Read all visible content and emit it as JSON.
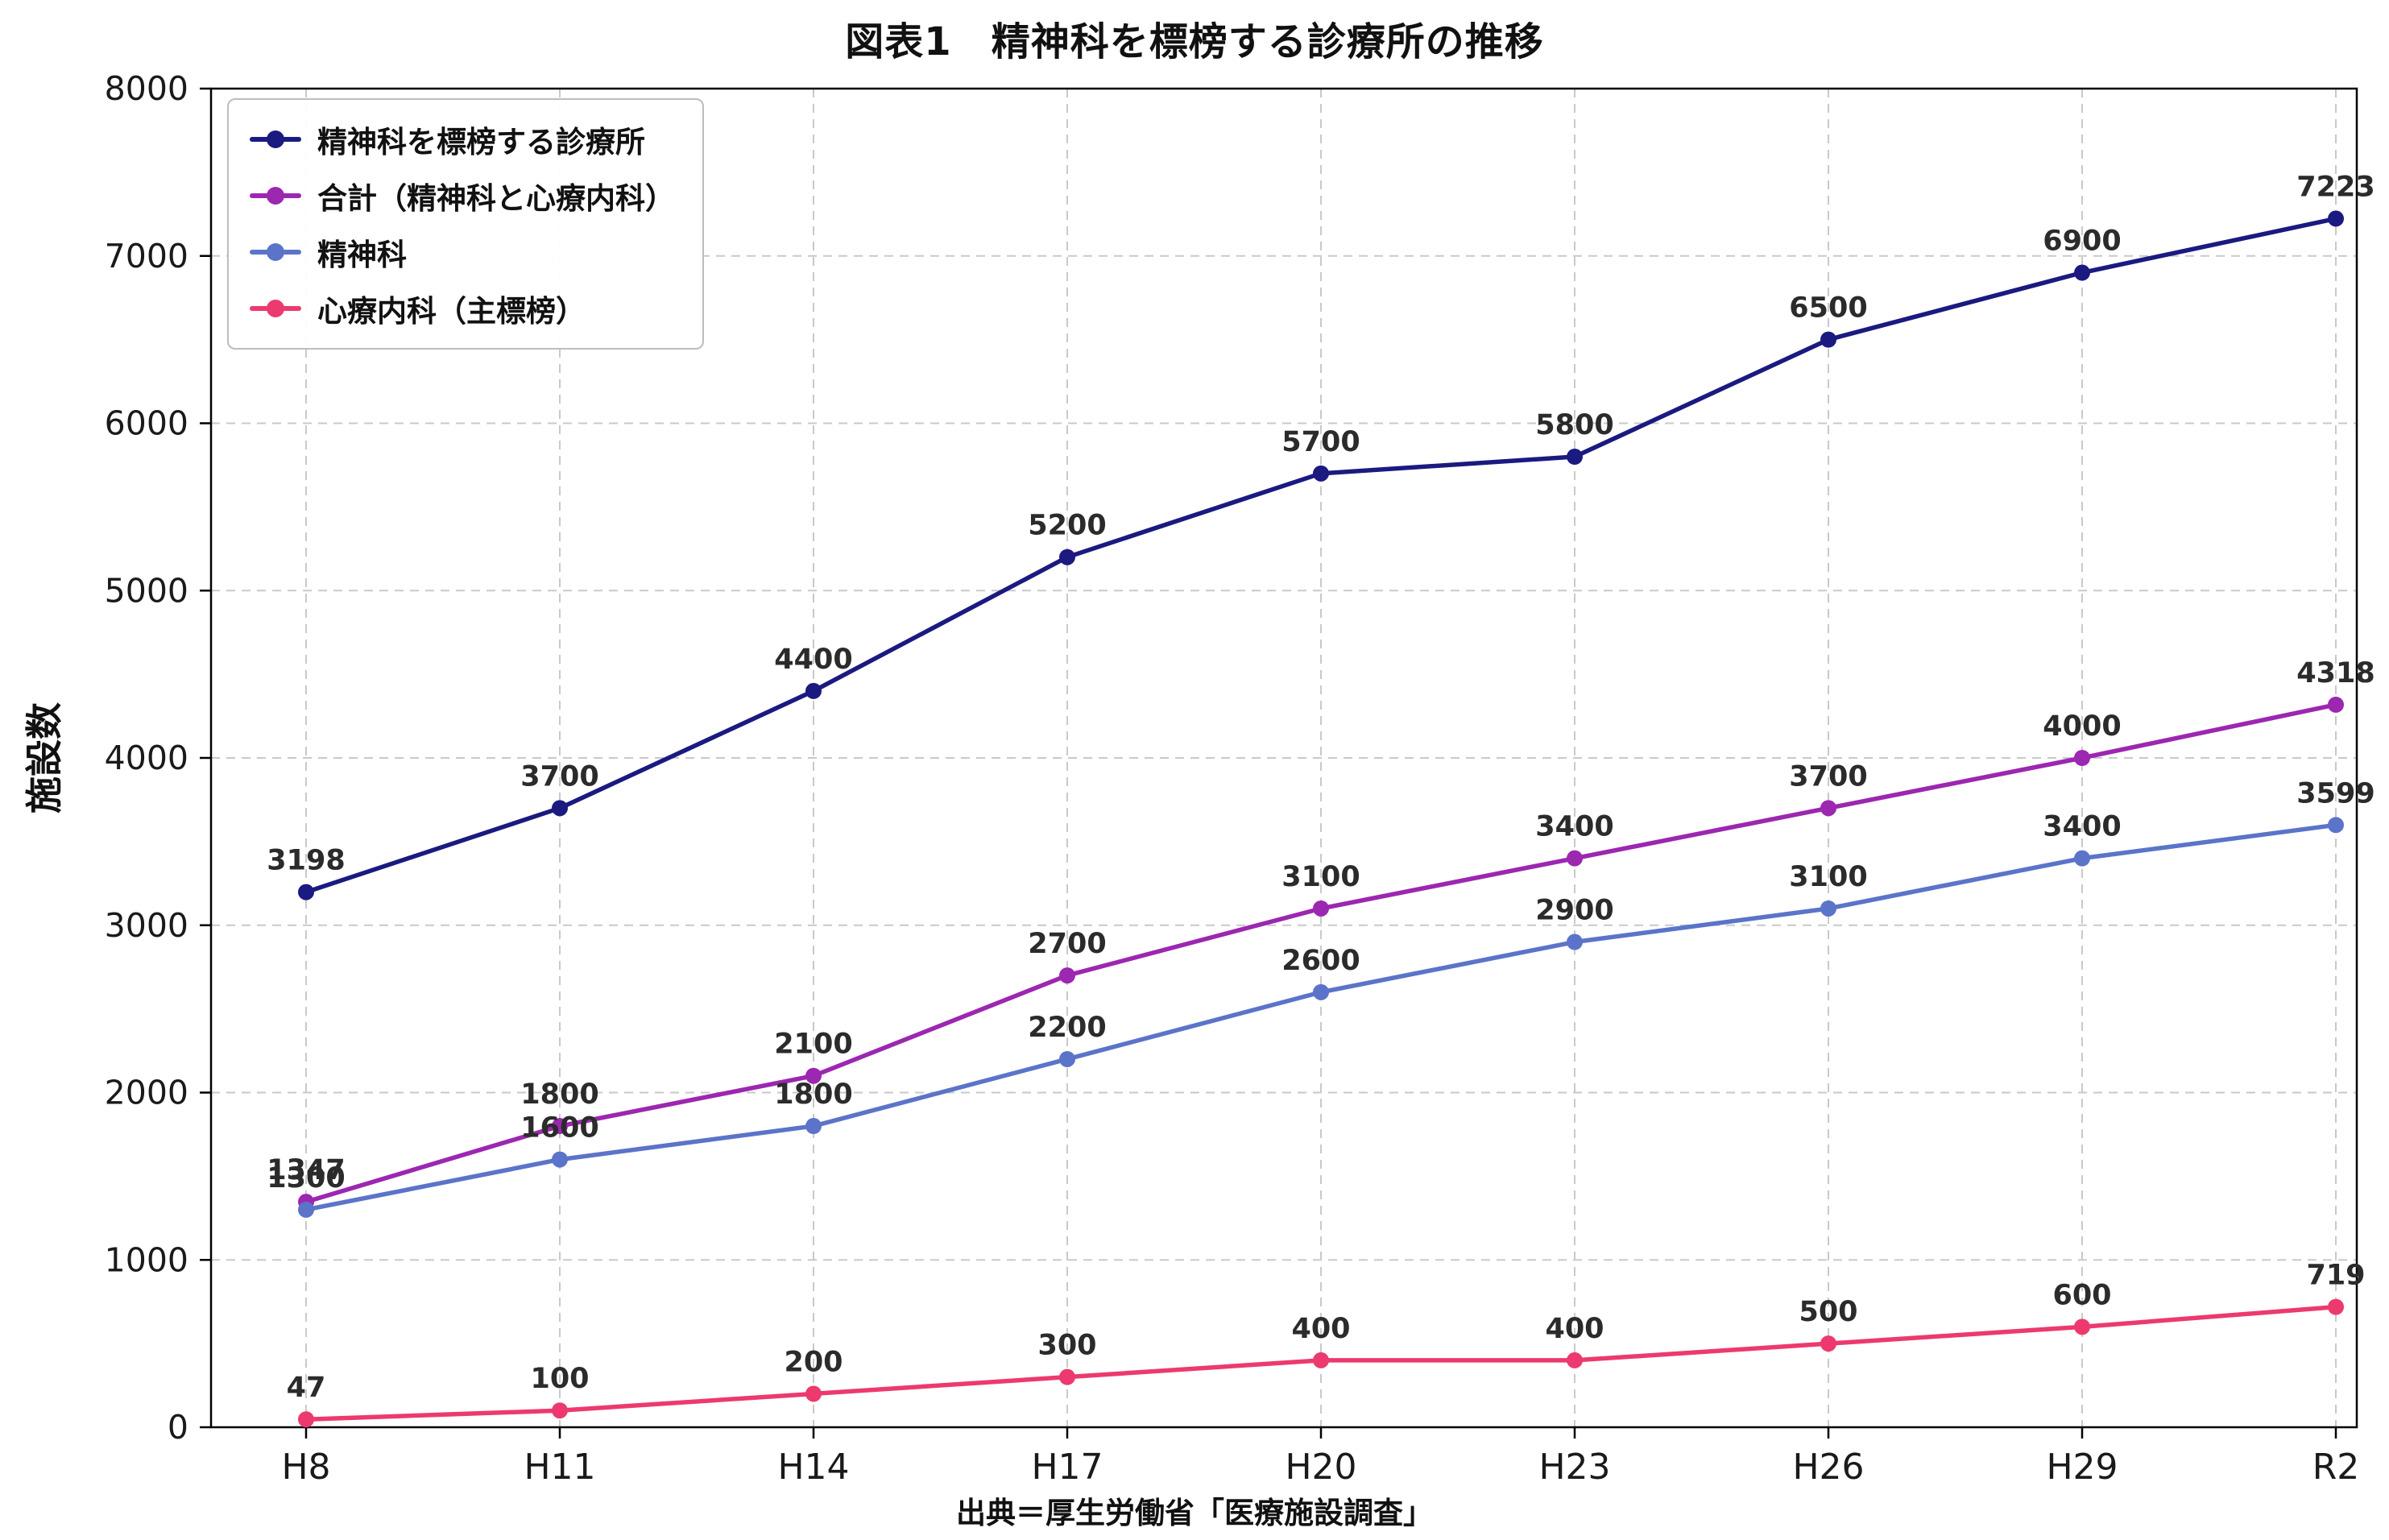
{
  "title": "図表1　精神科を標榜する診療所の推移",
  "source_caption": "出典＝厚生労働省「医療施設調査」",
  "chart_data": {
    "type": "line",
    "title": "図表1　精神科を標榜する診療所の推移",
    "xlabel": "",
    "ylabel": "施設数",
    "categories": [
      "H8",
      "H11",
      "H14",
      "H17",
      "H20",
      "H23",
      "H26",
      "H29",
      "R2"
    ],
    "ylim": [
      0,
      8000
    ],
    "y_ticks": [
      0,
      1000,
      2000,
      3000,
      4000,
      5000,
      6000,
      7000,
      8000
    ],
    "grid": true,
    "legend_position": "upper left",
    "series": [
      {
        "id": "psychiatry-signboard-clinics",
        "name": "精神科を標榜する診療所",
        "color": "#1a1a80",
        "values": [
          3198,
          3700,
          4400,
          5200,
          5700,
          5800,
          6500,
          6900,
          7223
        ]
      },
      {
        "id": "total-psychiatry-psychosomatic",
        "name": "合計（精神科と心療内科）",
        "color": "#9c27b0",
        "values": [
          1347,
          1800,
          2100,
          2700,
          3100,
          3400,
          3700,
          4000,
          4318
        ]
      },
      {
        "id": "psychiatry",
        "name": "精神科",
        "color": "#5b74c9",
        "values": [
          1300,
          1600,
          1800,
          2200,
          2600,
          2900,
          3100,
          3400,
          3599
        ]
      },
      {
        "id": "psychosomatic-main",
        "name": "心療内科（主標榜）",
        "color": "#ec3a6e",
        "values": [
          47,
          100,
          200,
          300,
          400,
          400,
          500,
          600,
          719
        ]
      }
    ],
    "styles": {
      "grid_color": "#c9c9c9",
      "spine_color": "#000000",
      "tick_label_color": "#1a1a1a",
      "data_label_color": "#2b2b2b"
    }
  }
}
